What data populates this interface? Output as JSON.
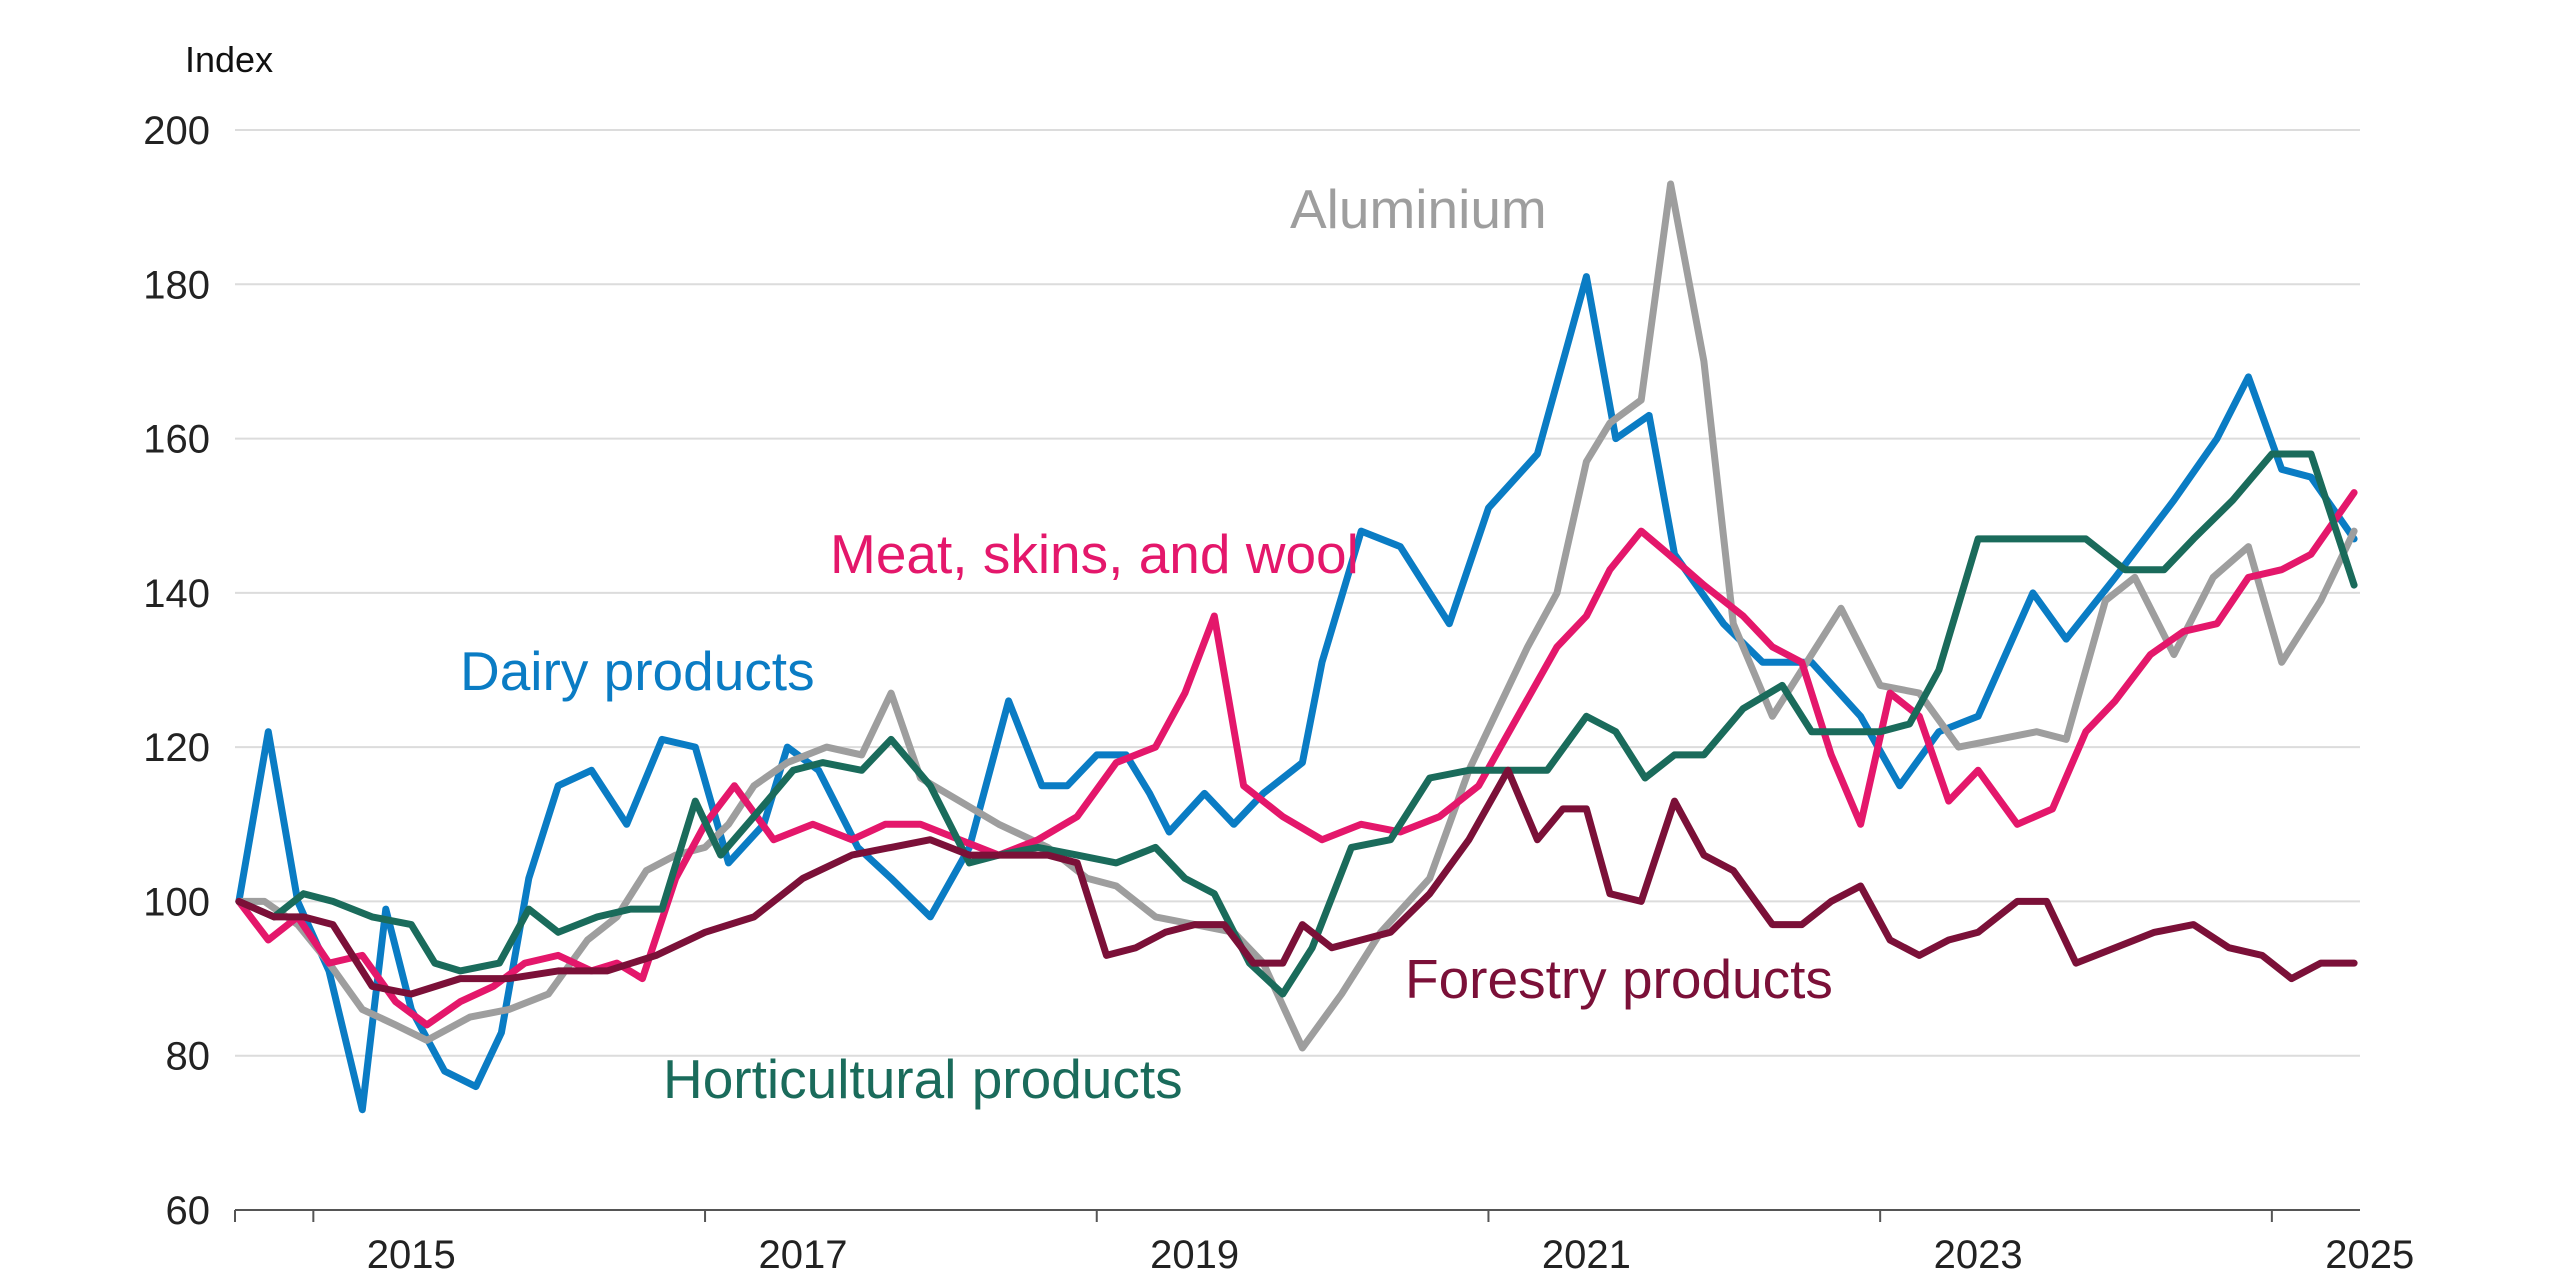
{
  "chart_data": {
    "type": "line",
    "ylabel": "Index",
    "ylim": [
      60,
      200
    ],
    "yticks": [
      60,
      80,
      100,
      120,
      140,
      160,
      180,
      200
    ],
    "xlim": [
      2014.6,
      2025.45
    ],
    "xticks": [
      "2015",
      "2017",
      "2019",
      "2021",
      "2023",
      "2025"
    ],
    "grid": true,
    "series": [
      {
        "name": "Dairy products",
        "color": "#0a7cc4",
        "x": [
          2014.62,
          2014.77,
          2014.92,
          2015.08,
          2015.25,
          2015.37,
          2015.5,
          2015.67,
          2015.83,
          2015.96,
          2016.1,
          2016.25,
          2016.42,
          2016.6,
          2016.78,
          2016.95,
          2017.12,
          2017.3,
          2017.42,
          2017.58,
          2017.78,
          2017.95,
          2018.15,
          2018.35,
          2018.55,
          2018.72,
          2018.85,
          2019.0,
          2019.15,
          2019.27,
          2019.37,
          2019.55,
          2019.7,
          2019.85,
          2020.05,
          2020.15,
          2020.35,
          2020.55,
          2020.8,
          2021.0,
          2021.25,
          2021.5,
          2021.65,
          2021.82,
          2021.95,
          2022.2,
          2022.4,
          2022.65,
          2022.9,
          2023.1,
          2023.3,
          2023.5,
          2023.78,
          2023.95,
          2024.2,
          2024.5,
          2024.72,
          2024.88,
          2025.05,
          2025.2,
          2025.42
        ],
        "y": [
          100,
          122,
          100,
          91,
          73,
          99,
          86,
          78,
          76,
          83,
          103,
          115,
          117,
          110,
          121,
          120,
          105,
          110,
          120,
          117,
          107,
          103,
          98,
          107,
          126,
          115,
          115,
          119,
          119,
          114,
          109,
          114,
          110,
          114,
          118,
          131,
          148,
          146,
          136,
          151,
          158,
          181,
          160,
          163,
          145,
          136,
          131,
          131,
          124,
          115,
          122,
          124,
          140,
          134,
          142,
          152,
          160,
          168,
          156,
          155,
          147
        ]
      },
      {
        "name": "Aluminium",
        "color": "#9e9e9e",
        "x": [
          2014.62,
          2014.75,
          2014.92,
          2015.08,
          2015.25,
          2015.42,
          2015.58,
          2015.8,
          2016.0,
          2016.2,
          2016.4,
          2016.55,
          2016.7,
          2016.85,
          2017.0,
          2017.12,
          2017.25,
          2017.42,
          2017.62,
          2017.8,
          2017.95,
          2018.1,
          2018.3,
          2018.5,
          2018.75,
          2018.95,
          2019.1,
          2019.3,
          2019.5,
          2019.7,
          2019.85,
          2020.05,
          2020.25,
          2020.45,
          2020.7,
          2020.9,
          2021.05,
          2021.2,
          2021.35,
          2021.5,
          2021.62,
          2021.78,
          2021.93,
          2022.1,
          2022.25,
          2022.45,
          2022.6,
          2022.8,
          2023.0,
          2023.2,
          2023.4,
          2023.6,
          2023.8,
          2023.95,
          2024.15,
          2024.3,
          2024.5,
          2024.7,
          2024.88,
          2025.05,
          2025.25,
          2025.42
        ],
        "y": [
          100,
          100,
          97,
          92,
          86,
          84,
          82,
          85,
          86,
          88,
          95,
          98,
          104,
          106,
          107,
          110,
          115,
          118,
          120,
          119,
          127,
          116,
          113,
          110,
          107,
          103,
          102,
          98,
          97,
          96,
          92,
          81,
          88,
          96,
          103,
          117,
          125,
          133,
          140,
          157,
          162,
          165,
          193,
          170,
          136,
          124,
          130,
          138,
          128,
          127,
          120,
          121,
          122,
          121,
          139,
          142,
          132,
          142,
          146,
          131,
          139,
          148
        ]
      },
      {
        "name": "Meat, skins, and wool",
        "color": "#e4176b",
        "x": [
          2014.62,
          2014.77,
          2014.92,
          2015.08,
          2015.25,
          2015.42,
          2015.58,
          2015.75,
          2015.92,
          2016.08,
          2016.25,
          2016.42,
          2016.55,
          2016.68,
          2016.85,
          2017.0,
          2017.15,
          2017.35,
          2017.55,
          2017.75,
          2017.92,
          2018.1,
          2018.3,
          2018.5,
          2018.7,
          2018.9,
          2019.1,
          2019.3,
          2019.45,
          2019.6,
          2019.75,
          2019.95,
          2020.15,
          2020.35,
          2020.55,
          2020.75,
          2020.95,
          2021.15,
          2021.35,
          2021.5,
          2021.62,
          2021.78,
          2021.92,
          2022.1,
          2022.3,
          2022.45,
          2022.6,
          2022.75,
          2022.9,
          2023.05,
          2023.2,
          2023.35,
          2023.5,
          2023.7,
          2023.88,
          2024.05,
          2024.2,
          2024.38,
          2024.55,
          2024.72,
          2024.88,
          2025.05,
          2025.2,
          2025.42
        ],
        "y": [
          100,
          95,
          98,
          92,
          93,
          87,
          84,
          87,
          89,
          92,
          93,
          91,
          92,
          90,
          103,
          110,
          115,
          108,
          110,
          108,
          110,
          110,
          108,
          106,
          108,
          111,
          118,
          120,
          127,
          137,
          115,
          111,
          108,
          110,
          109,
          111,
          115,
          124,
          133,
          137,
          143,
          148,
          145,
          141,
          137,
          133,
          131,
          119,
          110,
          127,
          124,
          113,
          117,
          110,
          112,
          122,
          126,
          132,
          135,
          136,
          142,
          143,
          145,
          153
        ]
      },
      {
        "name": "Horticultural products",
        "color": "#1a6b5b",
        "x": [
          2014.62,
          2014.8,
          2014.95,
          2015.1,
          2015.3,
          2015.5,
          2015.62,
          2015.75,
          2015.95,
          2016.1,
          2016.25,
          2016.45,
          2016.62,
          2016.78,
          2016.95,
          2017.08,
          2017.25,
          2017.45,
          2017.6,
          2017.8,
          2017.95,
          2018.15,
          2018.35,
          2018.5,
          2018.7,
          2018.9,
          2019.1,
          2019.3,
          2019.45,
          2019.6,
          2019.78,
          2019.95,
          2020.1,
          2020.3,
          2020.5,
          2020.7,
          2020.9,
          2021.0,
          2021.15,
          2021.3,
          2021.5,
          2021.65,
          2021.8,
          2021.95,
          2022.1,
          2022.3,
          2022.5,
          2022.65,
          2022.85,
          2023.0,
          2023.15,
          2023.3,
          2023.5,
          2023.7,
          2023.88,
          2024.05,
          2024.25,
          2024.45,
          2024.6,
          2024.8,
          2025.0,
          2025.2,
          2025.42
        ],
        "y": [
          100,
          98,
          101,
          100,
          98,
          97,
          92,
          91,
          92,
          99,
          96,
          98,
          99,
          99,
          113,
          106,
          111,
          117,
          118,
          117,
          121,
          115,
          105,
          106,
          107,
          106,
          105,
          107,
          103,
          101,
          92,
          88,
          94,
          107,
          108,
          116,
          117,
          117,
          117,
          117,
          124,
          122,
          116,
          119,
          119,
          125,
          128,
          122,
          122,
          122,
          123,
          130,
          147,
          147,
          147,
          147,
          143,
          143,
          147,
          152,
          158,
          158,
          141
        ]
      },
      {
        "name": "Forestry products",
        "color": "#7b1038",
        "x": [
          2014.62,
          2014.8,
          2014.95,
          2015.1,
          2015.3,
          2015.5,
          2015.75,
          2016.0,
          2016.25,
          2016.5,
          2016.75,
          2017.0,
          2017.25,
          2017.5,
          2017.75,
          2017.95,
          2018.15,
          2018.35,
          2018.55,
          2018.75,
          2018.9,
          2019.05,
          2019.2,
          2019.35,
          2019.5,
          2019.65,
          2019.8,
          2019.95,
          2020.05,
          2020.2,
          2020.35,
          2020.5,
          2020.7,
          2020.9,
          2021.1,
          2021.25,
          2021.38,
          2021.5,
          2021.62,
          2021.78,
          2021.95,
          2022.1,
          2022.25,
          2022.45,
          2022.6,
          2022.75,
          2022.9,
          2023.05,
          2023.2,
          2023.35,
          2023.5,
          2023.7,
          2023.85,
          2024.0,
          2024.2,
          2024.4,
          2024.6,
          2024.78,
          2024.95,
          2025.1,
          2025.25,
          2025.42
        ],
        "y": [
          100,
          98,
          98,
          97,
          89,
          88,
          90,
          90,
          91,
          91,
          93,
          96,
          98,
          103,
          106,
          107,
          108,
          106,
          106,
          106,
          105,
          93,
          94,
          96,
          97,
          97,
          92,
          92,
          97,
          94,
          95,
          96,
          101,
          108,
          117,
          108,
          112,
          112,
          101,
          100,
          113,
          106,
          104,
          97,
          97,
          100,
          102,
          95,
          93,
          95,
          96,
          100,
          100,
          92,
          94,
          96,
          97,
          94,
          93,
          90,
          92,
          92
        ]
      }
    ]
  },
  "labels": {
    "aluminium": "Aluminium",
    "meat": "Meat, skins, and wool",
    "dairy": "Dairy products",
    "forestry": "Forestry products",
    "horticultural": "Horticultural products"
  }
}
